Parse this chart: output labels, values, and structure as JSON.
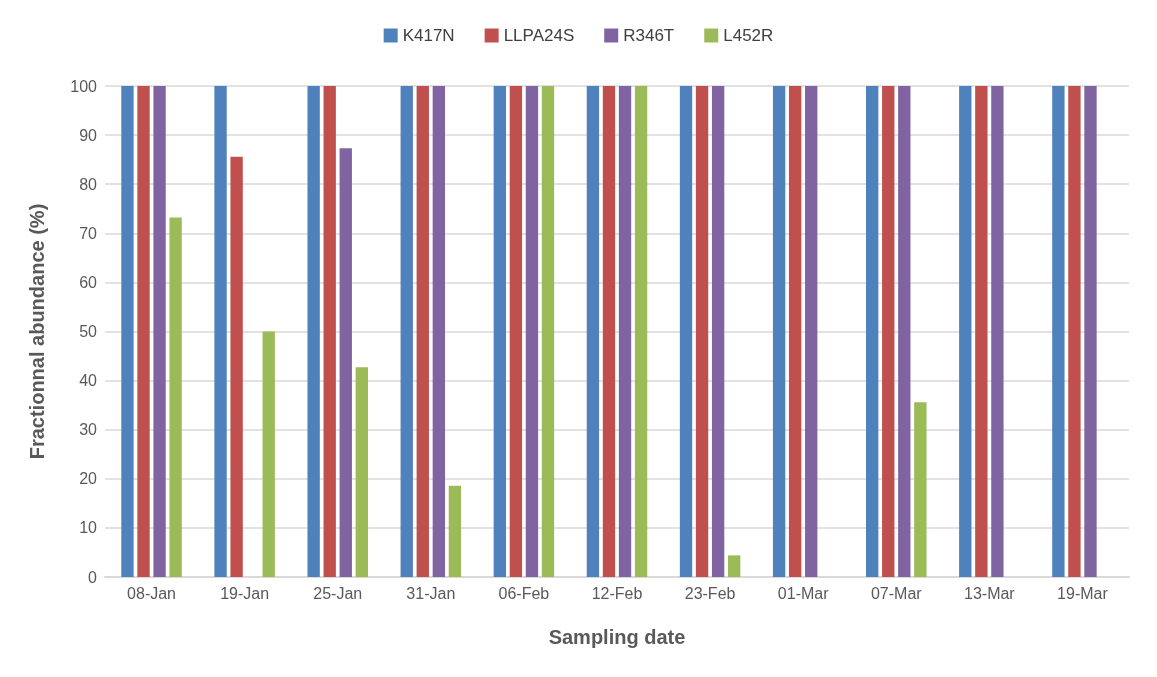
{
  "chart_data": {
    "type": "bar",
    "xlabel": "Sampling date",
    "ylabel": "Fractionnal abundance (%)",
    "categories": [
      "08-Jan",
      "19-Jan",
      "25-Jan",
      "31-Jan",
      "06-Feb",
      "12-Feb",
      "23-Feb",
      "01-Mar",
      "07-Mar",
      "13-Mar",
      "19-Mar"
    ],
    "series": [
      {
        "name": "K417N",
        "color": "#4f81bd",
        "values": [
          100,
          100,
          100,
          100,
          100,
          100,
          100,
          100,
          100,
          100,
          100
        ]
      },
      {
        "name": "LLPA24S",
        "color": "#c0504d",
        "values": [
          100,
          85.6,
          100,
          100,
          100,
          100,
          100,
          100,
          100,
          100,
          100
        ]
      },
      {
        "name": "R346T",
        "color": "#8064a2",
        "values": [
          100,
          0,
          87.3,
          100,
          100,
          100,
          100,
          100,
          100,
          100,
          100
        ]
      },
      {
        "name": "L452R",
        "color": "#9bbb59",
        "values": [
          73.2,
          50,
          42.7,
          18.6,
          100,
          100,
          4.4,
          0,
          35.6,
          0,
          0
        ]
      }
    ],
    "ylim": [
      0,
      100
    ],
    "yticks": [
      0,
      10,
      20,
      30,
      40,
      50,
      60,
      70,
      80,
      90,
      100
    ],
    "grid": "y",
    "legend": "top"
  }
}
